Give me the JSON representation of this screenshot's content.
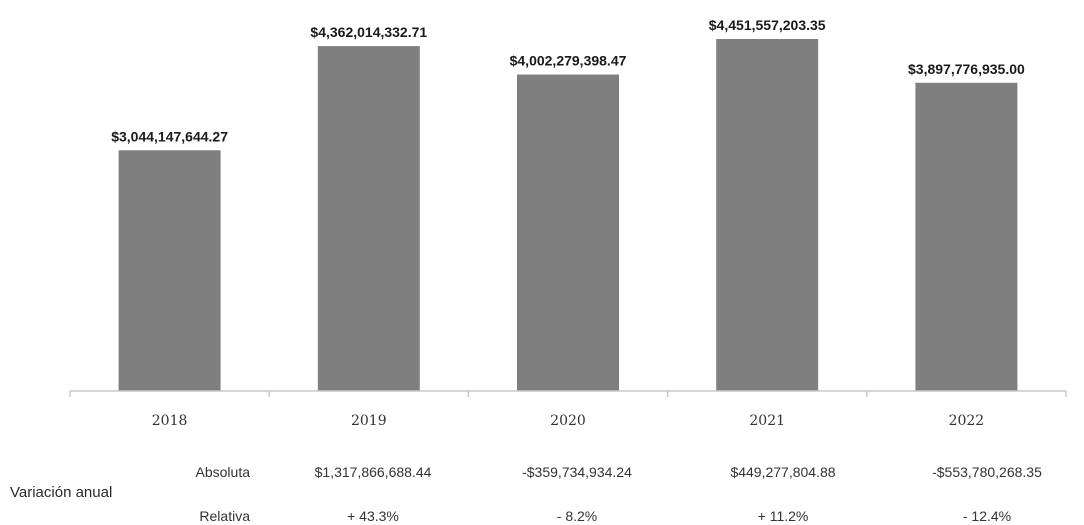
{
  "chart_data": {
    "type": "bar",
    "categories": [
      "2018",
      "2019",
      "2020",
      "2021",
      "2022"
    ],
    "values": [
      3044147644.27,
      4362014332.71,
      4002279398.47,
      4451557203.35,
      3897776935.0
    ],
    "data_labels": [
      "$3,044,147,644.27",
      "$4,362,014,332.71",
      "$4,002,279,398.47",
      "$4,451,557,203.35",
      "$3,897,776,935.00"
    ],
    "title": "",
    "xlabel": "",
    "ylabel": "",
    "bar_color": "#7f7f7f",
    "grid": false,
    "legend": "none"
  },
  "variacion": {
    "title": "Variación anual",
    "absoluta_label": "Absoluta",
    "relativa_label": "Relativa",
    "absoluta": [
      "$1,317,866,688.44",
      "-$359,734,934.24",
      "$449,277,804.88",
      "-$553,780,268.35"
    ],
    "relativa": [
      "+ 43.3%",
      "- 8.2%",
      "+ 11.2%",
      "- 12.4%"
    ]
  }
}
